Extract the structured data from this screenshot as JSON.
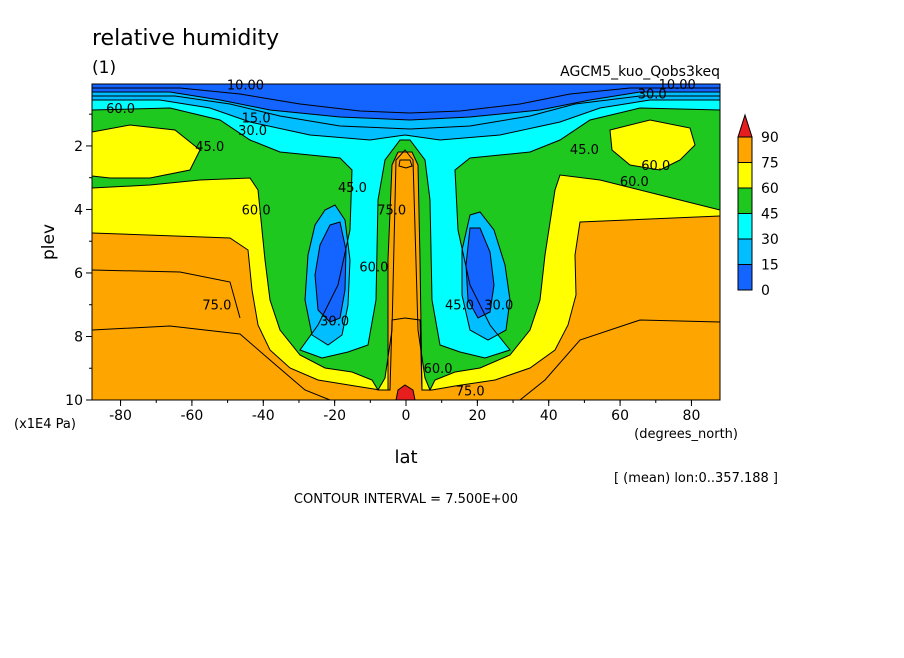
{
  "chart_data": {
    "type": "contour",
    "title": "relative humidity",
    "subtitle": "(1)",
    "experiment": "AGCM5_kuo_Qobs3keq",
    "xlabel": "lat",
    "x_units": "(degrees_north)",
    "ylabel": "plev",
    "y_units": "(x1E4 Pa)",
    "xlim": [
      -88,
      88
    ],
    "ylim": [
      10,
      0.05
    ],
    "x_ticks": [
      -80,
      -60,
      -40,
      -20,
      0,
      20,
      40,
      60,
      80
    ],
    "x_tick_labels": [
      "-80",
      "-60",
      "-40",
      "-20",
      "0",
      "20",
      "40",
      "60",
      "80"
    ],
    "y_ticks": [
      2,
      4,
      6,
      8,
      10
    ],
    "y_tick_labels": [
      "2",
      "4",
      "6",
      "8",
      "10"
    ],
    "levels": [
      0,
      15,
      30,
      45,
      60,
      75,
      90
    ],
    "colorbar_labels": [
      "90",
      "75",
      "60",
      "45",
      "30",
      "15",
      "0"
    ],
    "colors": {
      "0-15": "#1464ff",
      "15-30": "#00beff",
      "30-45": "#00ffff",
      "45-60": "#1ec81e",
      "60-75": "#ffff00",
      "75-90": "#ffa500",
      "90+": "#e61e1e"
    },
    "contour_labels": [
      {
        "text": "10.00",
        "lat": -45,
        "plev": 0.07
      },
      {
        "text": "15.0",
        "lat": -42,
        "plev": 1.1
      },
      {
        "text": "30.0",
        "lat": -43,
        "plev": 1.5
      },
      {
        "text": "45.0",
        "lat": -55,
        "plev": 2.0
      },
      {
        "text": "60.0",
        "lat": -80,
        "plev": 0.8
      },
      {
        "text": "60.0",
        "lat": -42,
        "plev": 4.0
      },
      {
        "text": "75.0",
        "lat": -53,
        "plev": 7.0
      },
      {
        "text": "45.0",
        "lat": -15,
        "plev": 3.3
      },
      {
        "text": "30.0",
        "lat": -20,
        "plev": 7.5
      },
      {
        "text": "60.0",
        "lat": -9,
        "plev": 5.8
      },
      {
        "text": "75.0",
        "lat": -4,
        "plev": 4.0
      },
      {
        "text": "45.0",
        "lat": 15,
        "plev": 7.0
      },
      {
        "text": "30.0",
        "lat": 26,
        "plev": 7.0
      },
      {
        "text": "60.0",
        "lat": 9,
        "plev": 9.0
      },
      {
        "text": "75.0",
        "lat": 18,
        "plev": 9.7
      },
      {
        "text": "45.0",
        "lat": 50,
        "plev": 2.1
      },
      {
        "text": "30.0",
        "lat": 69,
        "plev": 0.35
      },
      {
        "text": "10.00",
        "lat": 76,
        "plev": 0.05
      },
      {
        "text": "60.0",
        "lat": 70,
        "plev": 2.6
      },
      {
        "text": "60.0",
        "lat": 64,
        "plev": 3.1
      }
    ]
  },
  "contour_interval_text": "CONTOUR INTERVAL = 7.500E+00",
  "average_note": "[ (mean) lon:0..357.188 ]"
}
